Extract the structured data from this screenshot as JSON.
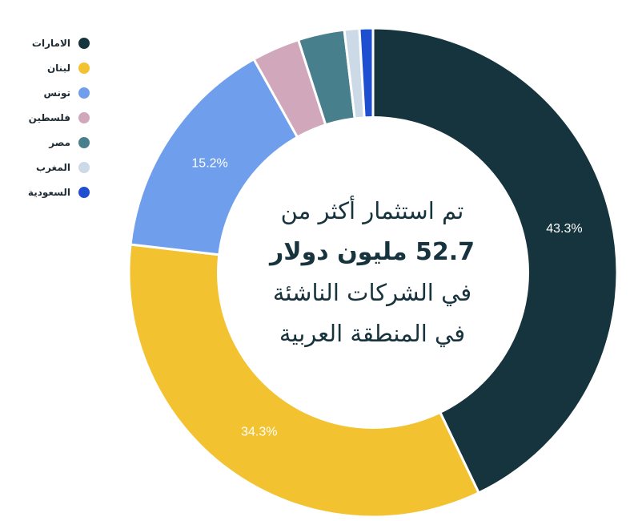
{
  "chart_data": {
    "type": "donut",
    "title": "",
    "center_text": {
      "line1": "تم استثمار أكثر من",
      "line2": "52.7 مليون دولار",
      "line3": "في الشركات الناشئة",
      "line4": "في المنطقة العربية"
    },
    "legend_position": "top-left",
    "slices": [
      {
        "label": "الامارات",
        "value": 43.3,
        "display": "43.3%",
        "color": "#16343d"
      },
      {
        "label": "لبنان",
        "value": 34.3,
        "display": "34.3%",
        "color": "#f2c230"
      },
      {
        "label": "تونس",
        "value": 15.2,
        "display": "15.2%",
        "color": "#6f9eec"
      },
      {
        "label": "فلسطين",
        "value": 3.2,
        "display": "",
        "color": "#d1a7bc"
      },
      {
        "label": "مصر",
        "value": 3.1,
        "display": "",
        "color": "#487f8c"
      },
      {
        "label": "المغرب",
        "value": 1.0,
        "display": "",
        "color": "#ccd9e6"
      },
      {
        "label": "السعودية",
        "value": 0.9,
        "display": "",
        "color": "#1e4fd0"
      }
    ]
  }
}
